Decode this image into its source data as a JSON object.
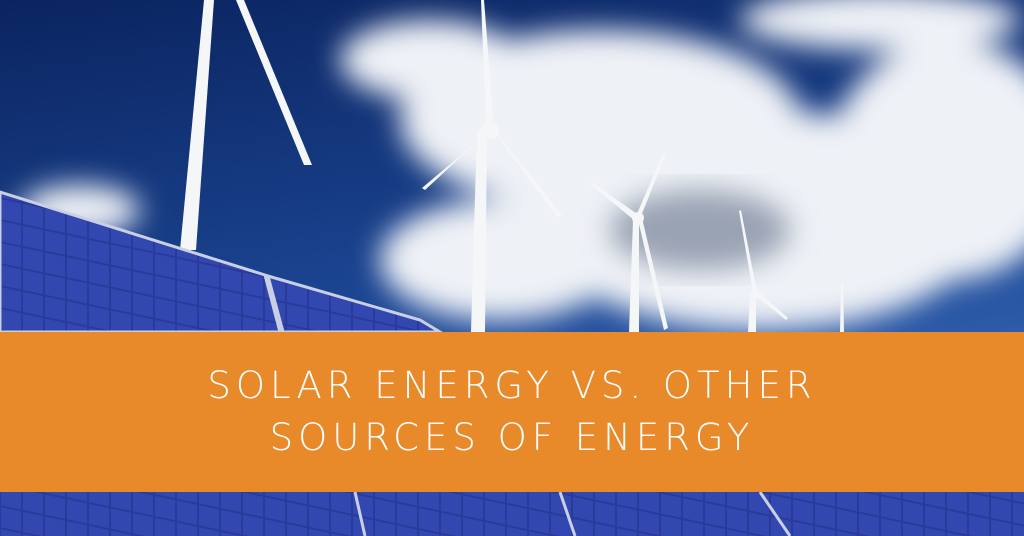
{
  "banner": {
    "lines": [
      "SOLAR ENERGY VS. OTHER",
      "SOURCES OF ENERGY"
    ]
  }
}
